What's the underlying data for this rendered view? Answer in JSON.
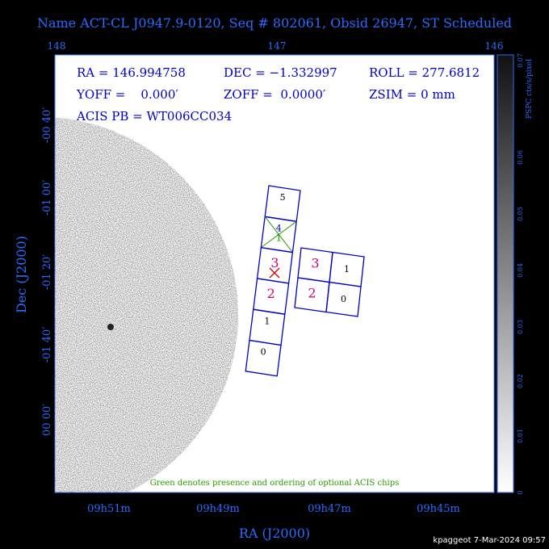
{
  "header": {
    "title": "Name ACT-CL J0947.9-0120, Seq # 802061, Obsid 26947, ST Scheduled"
  },
  "axes": {
    "top_ticks": [
      "148",
      "147",
      "146"
    ],
    "x_ticks": [
      "09h51m",
      "09h49m",
      "09h47m",
      "09h45m"
    ],
    "y_ticks": [
      "-00 40′",
      "-01 00′",
      "-01 20′",
      "-01 40′",
      "00 00′"
    ],
    "x_title": "RA (J2000)",
    "y_title": "Dec (J2000)"
  },
  "info": {
    "ra": "RA = 146.994758",
    "dec": "DEC = −1.332997",
    "roll": "ROLL = 277.6812",
    "yoff": "YOFF =    0.000′",
    "zoff": "ZOFF =  0.0000′",
    "zsim": "ZSIM = 0 mm",
    "acis_pb": "ACIS PB = WT006CC034"
  },
  "acis_s": [
    "5",
    "4",
    "3",
    "2",
    "1",
    "0"
  ],
  "acis_s_optional": "1",
  "acis_i": [
    "3",
    "1",
    "2",
    "0"
  ],
  "note": "Green denotes presence and ordering of optional ACIS chips",
  "colorbar": {
    "title": "PSPC cts/s/pixel",
    "ticks": [
      "0.07",
      "0.06",
      "0.05",
      "0.04",
      "0.03",
      "0.02",
      "0.01",
      "0"
    ]
  },
  "footer": "kpaggeot  7-Mar-2024 09:57"
}
